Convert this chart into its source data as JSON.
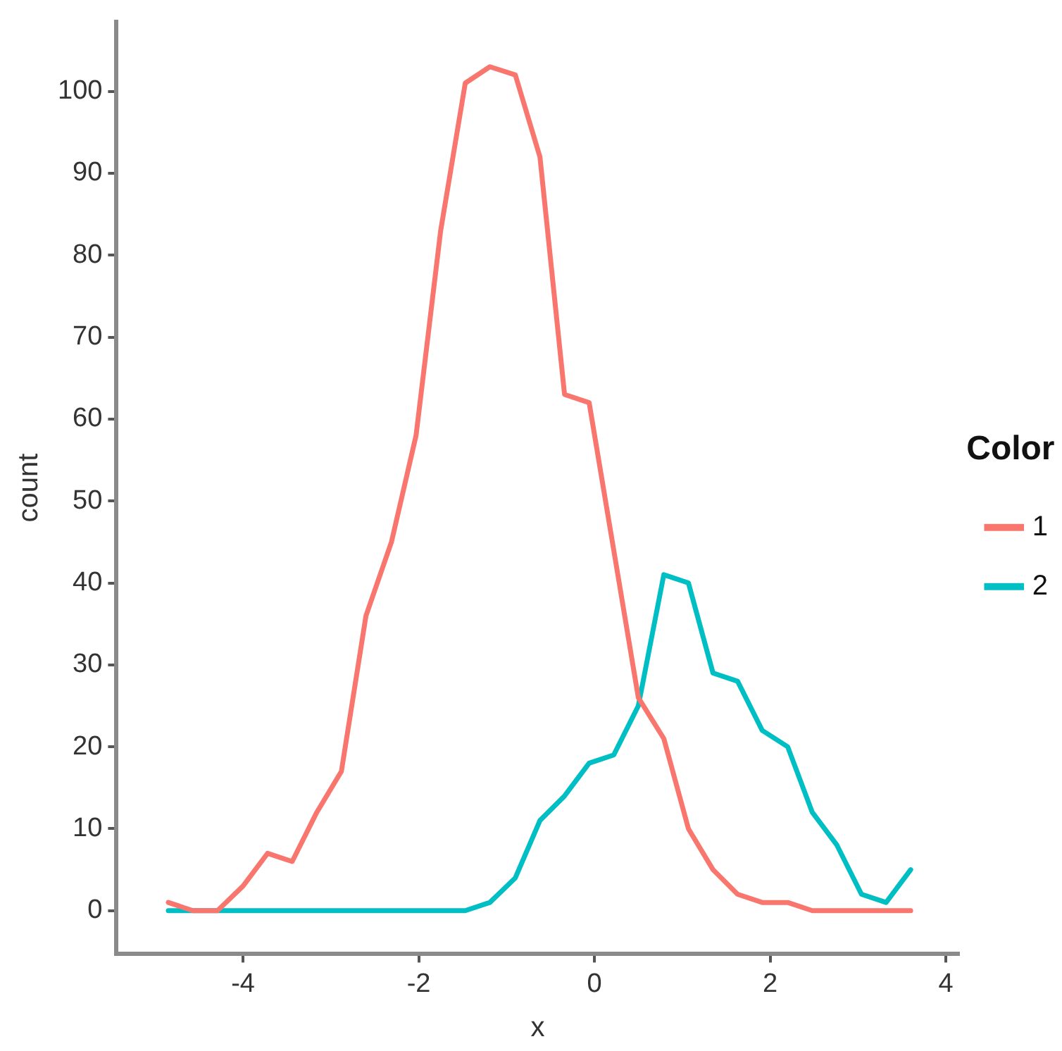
{
  "chart_data": {
    "type": "line",
    "xlabel": "x",
    "ylabel": "count",
    "legend_title": "Color",
    "legend": "right",
    "grid": false,
    "marker": "none",
    "line_style": "solid",
    "x": [
      -4.85,
      -4.57,
      -4.29,
      -4.0,
      -3.72,
      -3.44,
      -3.16,
      -2.88,
      -2.6,
      -2.31,
      -2.03,
      -1.75,
      -1.47,
      -1.19,
      -0.9,
      -0.62,
      -0.34,
      -0.06,
      0.22,
      0.5,
      0.79,
      1.07,
      1.35,
      1.63,
      1.91,
      2.2,
      2.48,
      2.76,
      3.04,
      3.32,
      3.6
    ],
    "series": [
      {
        "name": "1",
        "color": "#f8766d",
        "values": [
          1,
          0,
          0,
          3,
          7,
          6,
          12,
          17,
          36,
          45,
          58,
          83,
          101,
          103,
          102,
          92,
          63,
          62,
          44,
          26,
          21,
          10,
          5,
          2,
          1,
          1,
          0,
          0,
          0,
          0,
          0
        ]
      },
      {
        "name": "2",
        "color": "#00bfc4",
        "values": [
          0,
          0,
          0,
          0,
          0,
          0,
          0,
          0,
          0,
          0,
          0,
          0,
          0,
          1,
          4,
          11,
          14,
          18,
          19,
          25,
          41,
          40,
          29,
          28,
          22,
          20,
          12,
          8,
          2,
          1,
          5
        ]
      }
    ],
    "xlim": [
      -5.44,
      4.15
    ],
    "xticks": [
      -4,
      -2,
      0,
      2,
      4
    ],
    "ylim": [
      -5.3,
      108.5
    ],
    "yticks": [
      0,
      10,
      20,
      30,
      40,
      50,
      60,
      70,
      80,
      90,
      100
    ]
  }
}
